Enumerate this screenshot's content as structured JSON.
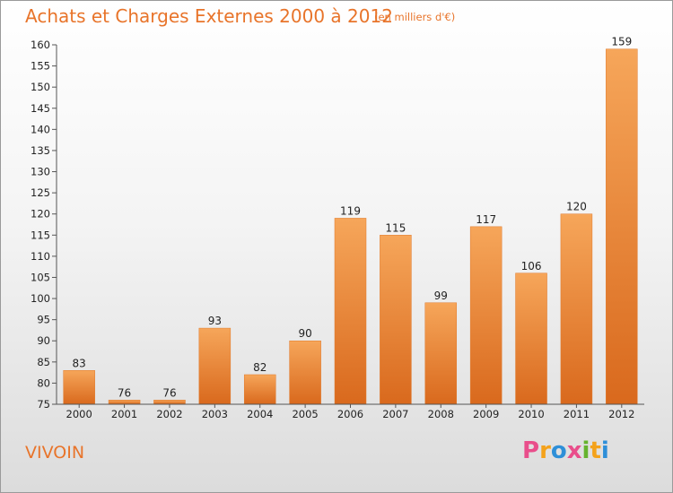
{
  "header": {
    "title": "Achats et Charges Externes 2000 à 2012",
    "subtitle": "(en milliers d'€)"
  },
  "footer": {
    "commune": "VIVOIN",
    "logo": {
      "letters": [
        "P",
        "r",
        "o",
        "x",
        "i",
        "t",
        "i"
      ],
      "colors": [
        "#e94e8b",
        "#f4a21b",
        "#2e8fd8",
        "#e94e8b",
        "#66b32e",
        "#f4a21b",
        "#2e8fd8"
      ]
    }
  },
  "chart_data": {
    "type": "bar",
    "title": "Achats et Charges Externes 2000 à 2012",
    "subtitle": "(en milliers d'€)",
    "categories": [
      "2000",
      "2001",
      "2002",
      "2003",
      "2004",
      "2005",
      "2006",
      "2007",
      "2008",
      "2009",
      "2010",
      "2011",
      "2012"
    ],
    "values": [
      83,
      76,
      76,
      93,
      82,
      90,
      119,
      115,
      99,
      117,
      106,
      120,
      159
    ],
    "ylim": [
      75,
      160
    ],
    "yticks": [
      75,
      80,
      85,
      90,
      95,
      100,
      105,
      110,
      115,
      120,
      125,
      130,
      135,
      140,
      145,
      150,
      155,
      160
    ],
    "grid": false,
    "bar_color": "#f0893a"
  }
}
